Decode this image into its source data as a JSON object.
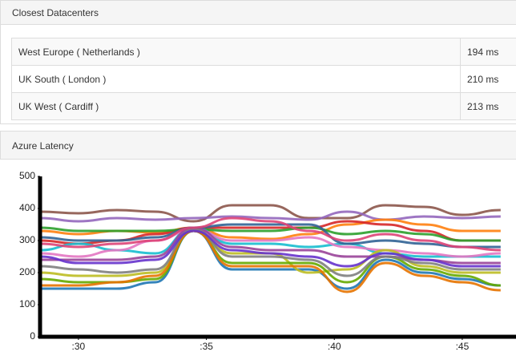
{
  "datacenters": {
    "title": "Closest Datacenters",
    "rows": [
      [
        "West Europe ( Netherlands )",
        "194 ms"
      ],
      [
        "UK South ( London )",
        "210 ms"
      ],
      [
        "UK West ( Cardiff )",
        "213 ms"
      ]
    ]
  },
  "chart_data": {
    "type": "line",
    "title": "Azure Latency",
    "x": [
      28.5,
      30,
      31.5,
      33,
      34.5,
      36,
      37.5,
      39,
      40.5,
      42,
      43.5,
      45,
      46.5
    ],
    "xlim": [
      28.5,
      47.1
    ],
    "xticks": [
      {
        "value": 30,
        "label": ":30"
      },
      {
        "value": 35,
        "label": ":35"
      },
      {
        "value": 40,
        "label": ":40"
      },
      {
        "value": 45,
        "label": ":45"
      }
    ],
    "ylim": [
      0,
      500
    ],
    "yticks": [
      0,
      100,
      200,
      300,
      400,
      500
    ],
    "grid": false,
    "series": [
      {
        "color": "#8c564b",
        "values": [
          390,
          385,
          395,
          390,
          360,
          410,
          410,
          370,
          370,
          410,
          405,
          380,
          395
        ]
      },
      {
        "color": "#9467bd",
        "values": [
          370,
          360,
          370,
          365,
          370,
          375,
          370,
          365,
          390,
          365,
          375,
          370,
          375
        ]
      },
      {
        "color": "#ff7f0e",
        "values": [
          330,
          320,
          330,
          325,
          340,
          310,
          305,
          320,
          350,
          365,
          350,
          330,
          330
        ]
      },
      {
        "color": "#d62728",
        "values": [
          300,
          290,
          300,
          320,
          340,
          340,
          340,
          340,
          360,
          350,
          330,
          300,
          300
        ]
      },
      {
        "color": "#2ca02c",
        "values": [
          340,
          330,
          330,
          330,
          335,
          330,
          330,
          340,
          320,
          330,
          320,
          300,
          300
        ]
      },
      {
        "color": "#1f77b4",
        "values": [
          150,
          150,
          150,
          170,
          330,
          210,
          210,
          210,
          150,
          240,
          200,
          180,
          160
        ]
      },
      {
        "color": "#17becf",
        "values": [
          270,
          290,
          270,
          260,
          340,
          290,
          290,
          280,
          290,
          260,
          250,
          250,
          250
        ]
      },
      {
        "color": "#e377c2",
        "values": [
          260,
          250,
          270,
          300,
          335,
          300,
          300,
          310,
          280,
          270,
          260,
          250,
          260
        ]
      },
      {
        "color": "#bcbd22",
        "values": [
          200,
          190,
          190,
          200,
          330,
          260,
          260,
          200,
          210,
          270,
          220,
          200,
          200
        ]
      },
      {
        "color": "#66aa00",
        "values": [
          180,
          170,
          170,
          180,
          330,
          230,
          230,
          230,
          170,
          250,
          210,
          190,
          160
        ]
      },
      {
        "color": "#994499",
        "values": [
          240,
          240,
          240,
          250,
          340,
          280,
          270,
          270,
          250,
          250,
          240,
          230,
          230
        ]
      },
      {
        "color": "#e67300",
        "values": [
          160,
          160,
          170,
          190,
          330,
          220,
          220,
          220,
          140,
          230,
          190,
          170,
          145
        ]
      },
      {
        "color": "#7f7f7f",
        "values": [
          220,
          210,
          200,
          210,
          335,
          250,
          250,
          240,
          190,
          250,
          230,
          210,
          210
        ]
      },
      {
        "color": "#316395",
        "values": [
          310,
          300,
          300,
          310,
          340,
          350,
          350,
          350,
          290,
          300,
          290,
          280,
          280
        ]
      },
      {
        "color": "#dd4477",
        "values": [
          290,
          280,
          290,
          300,
          340,
          370,
          360,
          330,
          300,
          320,
          300,
          280,
          270
        ]
      },
      {
        "color": "#6633cc",
        "values": [
          250,
          230,
          230,
          240,
          330,
          270,
          260,
          250,
          220,
          260,
          240,
          220,
          220
        ]
      }
    ]
  }
}
